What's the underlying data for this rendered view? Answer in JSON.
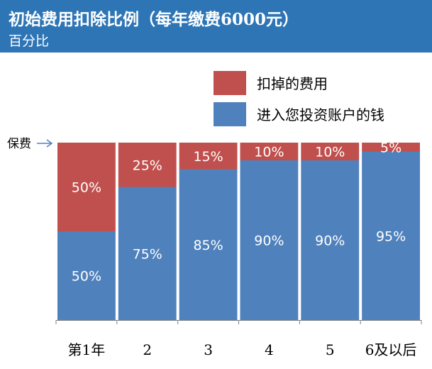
{
  "header": {
    "title": "初始费用扣除比例（每年缴费6000元）",
    "subtitle": "百分比"
  },
  "colors": {
    "header_bg": "#2e75b6",
    "deducted": "#c0504d",
    "invested": "#4f81bd"
  },
  "premium_marker": "保费",
  "chart_data": {
    "type": "bar",
    "stacked": true,
    "title": "初始费用扣除比例（每年缴费6000元）",
    "subtitle": "百分比",
    "categories": [
      "第1年",
      "2",
      "3",
      "4",
      "5",
      "6及以后"
    ],
    "series": [
      {
        "name": "进入您投资账户的钱",
        "color": "#4f81bd",
        "values": [
          50,
          75,
          85,
          90,
          90,
          95
        ]
      },
      {
        "name": "扣掉的费用",
        "color": "#c0504d",
        "values": [
          50,
          25,
          15,
          10,
          10,
          5
        ]
      }
    ],
    "ylim": [
      0,
      100
    ],
    "legend": [
      "扣掉的费用",
      "进入您投资账户的钱"
    ],
    "legend_position": "top-right"
  }
}
